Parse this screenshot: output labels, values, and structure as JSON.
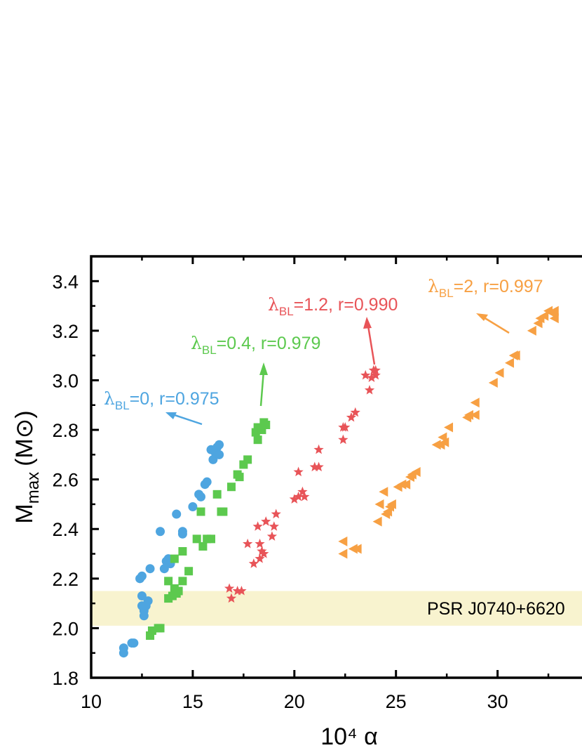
{
  "chart_data": {
    "type": "scatter",
    "xlabel": "10⁴ α",
    "ylabel": {
      "main": "M",
      "sub": "max",
      "unit": "(M⊙)"
    },
    "xlim": [
      10,
      34.5
    ],
    "ylim": [
      1.8,
      3.5
    ],
    "x_ticks": [
      10,
      15,
      20,
      25,
      30
    ],
    "x_tick_labels": [
      "10",
      "15",
      "20",
      "25",
      "30"
    ],
    "y_ticks": [
      1.8,
      2.0,
      2.2,
      2.4,
      2.6,
      2.8,
      3.0,
      3.2,
      3.4
    ],
    "y_tick_labels": [
      "1.8",
      "2.0",
      "2.2",
      "2.4",
      "2.6",
      "2.8",
      "3.0",
      "3.2",
      "3.4"
    ],
    "band": {
      "label": "PSR J0740+6620",
      "y_range": [
        2.01,
        2.15
      ],
      "color": "#f8f3cf"
    },
    "series": [
      {
        "label_lambda": "λ",
        "label_sub": "BL",
        "label_rest": "=0, r=0.975",
        "color": "#4ea5e0",
        "marker": "circle",
        "points": [
          [
            11.6,
            1.92
          ],
          [
            11.6,
            1.9
          ],
          [
            12.0,
            1.94
          ],
          [
            12.1,
            1.94
          ],
          [
            12.4,
            2.2
          ],
          [
            12.5,
            2.21
          ],
          [
            12.5,
            2.13
          ],
          [
            12.5,
            2.09
          ],
          [
            12.6,
            2.05
          ],
          [
            12.6,
            2.07
          ],
          [
            12.7,
            2.09
          ],
          [
            12.8,
            2.11
          ],
          [
            12.9,
            2.24
          ],
          [
            13.4,
            2.39
          ],
          [
            13.6,
            2.24
          ],
          [
            13.7,
            2.27
          ],
          [
            13.8,
            2.28
          ],
          [
            13.9,
            2.26
          ],
          [
            14.2,
            2.46
          ],
          [
            14.5,
            2.39
          ],
          [
            14.5,
            2.38
          ],
          [
            15.0,
            2.49
          ],
          [
            15.3,
            2.54
          ],
          [
            15.4,
            2.53
          ],
          [
            15.6,
            2.58
          ],
          [
            15.7,
            2.59
          ],
          [
            15.9,
            2.72
          ],
          [
            16.0,
            2.68
          ],
          [
            16.1,
            2.71
          ],
          [
            16.2,
            2.73
          ],
          [
            16.3,
            2.74
          ],
          [
            16.3,
            2.7
          ]
        ]
      },
      {
        "label_lambda": "λ",
        "label_sub": "BL",
        "label_rest": "=0.4, r=0.979",
        "color": "#5cc94e",
        "marker": "square",
        "points": [
          [
            12.9,
            1.97
          ],
          [
            13.0,
            1.99
          ],
          [
            13.3,
            2.0
          ],
          [
            13.4,
            2.0
          ],
          [
            13.8,
            2.19
          ],
          [
            13.8,
            2.12
          ],
          [
            14.0,
            2.13
          ],
          [
            14.1,
            2.16
          ],
          [
            14.1,
            2.28
          ],
          [
            14.2,
            2.14
          ],
          [
            14.3,
            2.15
          ],
          [
            14.5,
            2.19
          ],
          [
            14.5,
            2.31
          ],
          [
            14.8,
            2.23
          ],
          [
            15.2,
            2.36
          ],
          [
            15.4,
            2.47
          ],
          [
            15.5,
            2.33
          ],
          [
            15.7,
            2.36
          ],
          [
            15.9,
            2.36
          ],
          [
            16.2,
            2.54
          ],
          [
            16.4,
            2.47
          ],
          [
            16.5,
            2.47
          ],
          [
            16.9,
            2.57
          ],
          [
            17.2,
            2.62
          ],
          [
            17.3,
            2.61
          ],
          [
            17.5,
            2.66
          ],
          [
            17.7,
            2.68
          ],
          [
            18.1,
            2.79
          ],
          [
            18.2,
            2.81
          ],
          [
            18.2,
            2.76
          ],
          [
            18.4,
            2.8
          ],
          [
            18.5,
            2.83
          ],
          [
            18.6,
            2.82
          ]
        ]
      },
      {
        "label_lambda": "λ",
        "label_sub": "BL",
        "label_rest": "=1.2, r=0.990",
        "color": "#e85458",
        "marker": "star",
        "points": [
          [
            16.8,
            2.16
          ],
          [
            16.9,
            2.12
          ],
          [
            17.2,
            2.15
          ],
          [
            17.4,
            2.15
          ],
          [
            17.7,
            2.34
          ],
          [
            18.0,
            2.26
          ],
          [
            18.2,
            2.41
          ],
          [
            18.3,
            2.28
          ],
          [
            18.3,
            2.34
          ],
          [
            18.4,
            2.31
          ],
          [
            18.5,
            2.3
          ],
          [
            18.6,
            2.43
          ],
          [
            18.9,
            2.37
          ],
          [
            19.0,
            2.41
          ],
          [
            19.1,
            2.46
          ],
          [
            20.0,
            2.52
          ],
          [
            20.2,
            2.53
          ],
          [
            20.2,
            2.63
          ],
          [
            20.4,
            2.55
          ],
          [
            20.5,
            2.53
          ],
          [
            21.0,
            2.65
          ],
          [
            21.2,
            2.72
          ],
          [
            21.2,
            2.65
          ],
          [
            22.4,
            2.76
          ],
          [
            22.4,
            2.81
          ],
          [
            22.5,
            2.81
          ],
          [
            22.8,
            2.85
          ],
          [
            23.0,
            2.87
          ],
          [
            23.5,
            3.02
          ],
          [
            23.7,
            2.96
          ],
          [
            23.8,
            3.01
          ],
          [
            23.9,
            3.04
          ],
          [
            24.0,
            3.04
          ],
          [
            24.0,
            3.02
          ]
        ]
      },
      {
        "label_lambda": "λ",
        "label_sub": "BL",
        "label_rest": "=2, r=0.997",
        "color": "#f7a043",
        "marker": "triangle-left",
        "points": [
          [
            22.4,
            2.35
          ],
          [
            22.4,
            2.3
          ],
          [
            22.9,
            2.32
          ],
          [
            23.1,
            2.32
          ],
          [
            24.1,
            2.43
          ],
          [
            24.2,
            2.5
          ],
          [
            24.4,
            2.55
          ],
          [
            24.5,
            2.46
          ],
          [
            24.6,
            2.47
          ],
          [
            24.7,
            2.49
          ],
          [
            24.8,
            2.5
          ],
          [
            25.1,
            2.57
          ],
          [
            25.3,
            2.58
          ],
          [
            25.5,
            2.58
          ],
          [
            25.7,
            2.61
          ],
          [
            25.8,
            2.62
          ],
          [
            26.0,
            2.63
          ],
          [
            27.0,
            2.74
          ],
          [
            27.2,
            2.74
          ],
          [
            27.3,
            2.77
          ],
          [
            27.4,
            2.75
          ],
          [
            27.6,
            2.81
          ],
          [
            28.5,
            2.85
          ],
          [
            28.6,
            2.86
          ],
          [
            28.9,
            2.91
          ],
          [
            28.9,
            2.86
          ],
          [
            29.8,
            2.99
          ],
          [
            30.1,
            3.03
          ],
          [
            30.6,
            3.07
          ],
          [
            30.8,
            3.1
          ],
          [
            30.9,
            3.1
          ],
          [
            31.7,
            3.2
          ],
          [
            32.0,
            3.23
          ],
          [
            32.1,
            3.25
          ],
          [
            32.3,
            3.26
          ],
          [
            32.5,
            3.28
          ],
          [
            32.7,
            3.27
          ],
          [
            32.8,
            3.28
          ],
          [
            32.8,
            3.25
          ]
        ]
      }
    ]
  }
}
